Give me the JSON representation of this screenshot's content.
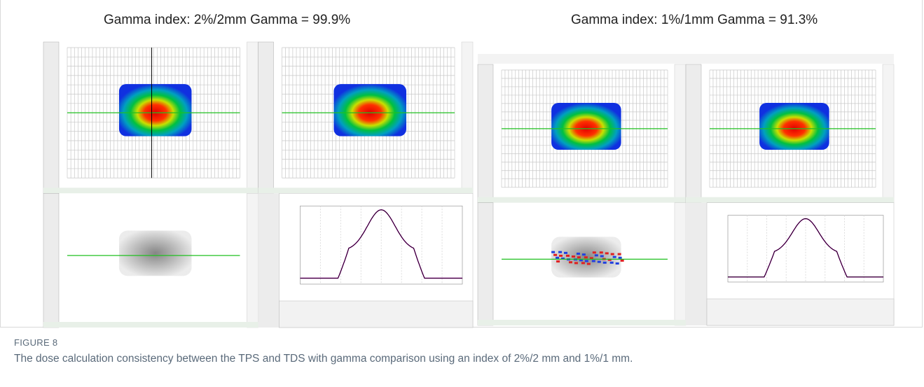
{
  "figure": {
    "panels": [
      {
        "title": "Gamma index: 2%/2mm Gamma = 99.9%"
      },
      {
        "title": "Gamma index: 1%/1mm Gamma = 91.3%"
      }
    ],
    "label": "FIGURE 8",
    "caption": "The dose calculation consistency between the TPS and TDS with gamma comparison using an index of 2%/2 mm and 1%/1 mm."
  }
}
